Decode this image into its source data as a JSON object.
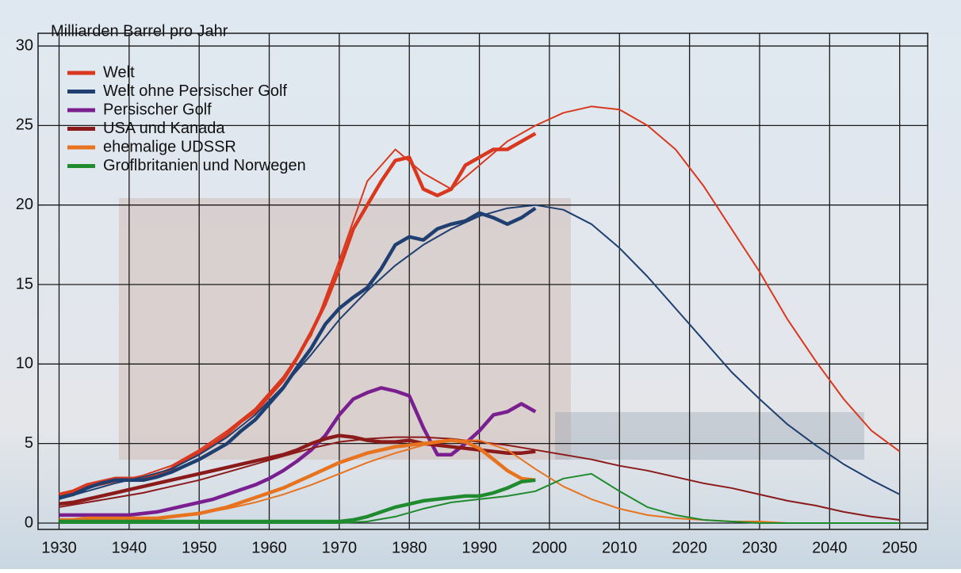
{
  "chart_data": {
    "type": "line",
    "y_label": "Milliarden Barrel pro Jahr",
    "xlim": [
      1927,
      2054
    ],
    "ylim": [
      -0.4,
      30.8
    ],
    "xticks": [
      1930,
      1940,
      1950,
      1960,
      1970,
      1980,
      1990,
      2000,
      2010,
      2020,
      2030,
      2040,
      2050
    ],
    "yticks": [
      0,
      5,
      10,
      15,
      20,
      25,
      30
    ],
    "grid": true,
    "legend": "top-left",
    "x": [
      1930,
      1932,
      1934,
      1936,
      1938,
      1940,
      1942,
      1944,
      1946,
      1948,
      1950,
      1952,
      1954,
      1956,
      1958,
      1960,
      1962,
      1964,
      1966,
      1968,
      1970,
      1972,
      1974,
      1976,
      1978,
      1980,
      1982,
      1984,
      1986,
      1988,
      1990,
      1992,
      1994,
      1996,
      1998
    ],
    "trend_x": [
      1930,
      1934,
      1938,
      1942,
      1946,
      1950,
      1954,
      1958,
      1962,
      1966,
      1970,
      1974,
      1978,
      1982,
      1986,
      1990,
      1994,
      1998,
      2002,
      2006,
      2010,
      2014,
      2018,
      2022,
      2026,
      2030,
      2034,
      2038,
      2042,
      2046,
      2050
    ],
    "series": [
      {
        "name": "Welt",
        "color": "#d9381e",
        "values": [
          1.8,
          2.0,
          2.4,
          2.6,
          2.8,
          2.8,
          2.8,
          3.0,
          3.4,
          4.0,
          4.4,
          5.0,
          5.6,
          6.4,
          7.0,
          8.0,
          9.0,
          10.4,
          12.0,
          13.8,
          16.0,
          18.5,
          20.0,
          21.5,
          22.8,
          23.0,
          21.0,
          20.6,
          21.0,
          22.5,
          23.0,
          23.5,
          23.5,
          24.0,
          24.5
        ],
        "trend": [
          1.5,
          2.2,
          2.6,
          3.0,
          3.6,
          4.6,
          5.8,
          7.2,
          9.2,
          11.8,
          16.5,
          21.5,
          23.5,
          22.0,
          21.0,
          22.5,
          24.0,
          25.0,
          25.8,
          26.2,
          26.0,
          25.0,
          23.5,
          21.2,
          18.5,
          15.8,
          12.8,
          10.2,
          7.8,
          5.8,
          4.5
        ]
      },
      {
        "name": "Welt ohne Persischer Golf",
        "color": "#1f3f70",
        "values": [
          1.6,
          1.8,
          2.2,
          2.5,
          2.7,
          2.7,
          2.7,
          2.9,
          3.2,
          3.6,
          4.0,
          4.5,
          5.0,
          5.8,
          6.5,
          7.5,
          8.5,
          9.8,
          11.0,
          12.5,
          13.5,
          14.2,
          14.8,
          16.0,
          17.5,
          18.0,
          17.8,
          18.5,
          18.8,
          19.0,
          19.5,
          19.2,
          18.8,
          19.2,
          19.8
        ],
        "trend": [
          1.5,
          2.0,
          2.5,
          2.9,
          3.4,
          4.3,
          5.4,
          6.8,
          8.6,
          10.6,
          12.8,
          14.6,
          16.2,
          17.5,
          18.5,
          19.3,
          19.8,
          20.0,
          19.7,
          18.8,
          17.3,
          15.5,
          13.5,
          11.5,
          9.5,
          7.8,
          6.2,
          4.9,
          3.7,
          2.7,
          1.8
        ]
      },
      {
        "name": "Persischer Golf",
        "color": "#7a1f8f",
        "values": [
          0.5,
          0.5,
          0.5,
          0.5,
          0.5,
          0.5,
          0.6,
          0.7,
          0.9,
          1.1,
          1.3,
          1.5,
          1.8,
          2.1,
          2.4,
          2.8,
          3.3,
          3.9,
          4.6,
          5.5,
          6.8,
          7.8,
          8.2,
          8.5,
          8.3,
          8.0,
          6.0,
          4.3,
          4.3,
          5.0,
          5.8,
          6.8,
          7.0,
          7.5,
          7.0
        ]
      },
      {
        "name": "USA und Kanada",
        "color": "#8b1a1a",
        "values": [
          1.2,
          1.3,
          1.5,
          1.7,
          1.9,
          2.1,
          2.3,
          2.5,
          2.7,
          2.9,
          3.1,
          3.3,
          3.5,
          3.7,
          3.9,
          4.1,
          4.3,
          4.6,
          5.0,
          5.3,
          5.5,
          5.4,
          5.2,
          5.1,
          5.1,
          5.2,
          5.0,
          4.9,
          4.8,
          4.7,
          4.6,
          4.5,
          4.4,
          4.4,
          4.5
        ],
        "trend": [
          1.0,
          1.3,
          1.6,
          1.9,
          2.3,
          2.7,
          3.2,
          3.7,
          4.2,
          4.7,
          5.1,
          5.3,
          5.4,
          5.4,
          5.3,
          5.1,
          4.9,
          4.6,
          4.3,
          4.0,
          3.6,
          3.3,
          2.9,
          2.5,
          2.2,
          1.8,
          1.4,
          1.1,
          0.7,
          0.4,
          0.2
        ]
      },
      {
        "name": "ehemalige UDSSR",
        "color": "#e8731f",
        "values": [
          0.2,
          0.2,
          0.3,
          0.3,
          0.3,
          0.3,
          0.3,
          0.3,
          0.4,
          0.5,
          0.6,
          0.8,
          1.0,
          1.3,
          1.6,
          1.9,
          2.2,
          2.6,
          3.0,
          3.4,
          3.8,
          4.1,
          4.4,
          4.6,
          4.8,
          4.9,
          5.0,
          5.1,
          5.2,
          5.1,
          4.7,
          4.0,
          3.3,
          2.8,
          2.7
        ],
        "trend": [
          0.2,
          0.3,
          0.3,
          0.3,
          0.4,
          0.6,
          0.9,
          1.3,
          1.8,
          2.4,
          3.1,
          3.8,
          4.4,
          4.9,
          5.2,
          5.2,
          4.6,
          3.4,
          2.3,
          1.5,
          0.9,
          0.5,
          0.3,
          0.2,
          0.1,
          0.1,
          0,
          0,
          0,
          0,
          0
        ]
      },
      {
        "name": "Groflbritanien und Norwegen",
        "color": "#1f8a2e",
        "values": [
          0.1,
          0.1,
          0.1,
          0.1,
          0.1,
          0.1,
          0.1,
          0.1,
          0.1,
          0.1,
          0.1,
          0.1,
          0.1,
          0.1,
          0.1,
          0.1,
          0.1,
          0.1,
          0.1,
          0.1,
          0.1,
          0.2,
          0.4,
          0.7,
          1.0,
          1.2,
          1.4,
          1.5,
          1.6,
          1.7,
          1.7,
          1.9,
          2.2,
          2.6,
          2.7
        ],
        "trend": [
          0,
          0,
          0,
          0,
          0,
          0,
          0,
          0,
          0,
          0,
          0,
          0.1,
          0.4,
          0.9,
          1.3,
          1.5,
          1.7,
          2.0,
          2.8,
          3.1,
          2.0,
          1.0,
          0.5,
          0.2,
          0.1,
          0,
          0,
          0,
          0,
          0,
          0
        ]
      }
    ]
  }
}
